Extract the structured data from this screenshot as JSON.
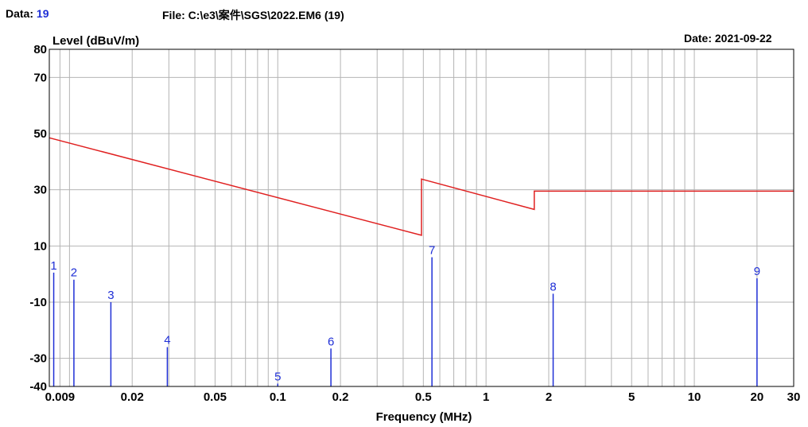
{
  "header": {
    "data_label": "Data:",
    "data_value": "19",
    "file_label": "File: C:\\e3\\案件\\SGS\\2022.EM6  (19)",
    "date_label": "Date: 2021-09-22"
  },
  "chart_data": {
    "type": "line",
    "xscale": "log",
    "xlabel": "Frequency (MHz)",
    "ylabel": "Level (dBuV/m)",
    "xlim": [
      0.008,
      30
    ],
    "ylim": [
      -40,
      80
    ],
    "grid": true,
    "y_ticks": [
      80,
      70,
      50,
      30,
      10,
      -10,
      -30,
      -40
    ],
    "y_tick_labels": [
      "80",
      "70",
      "50",
      "30",
      "10",
      "-10",
      "-30",
      "-40"
    ],
    "x_ticks": [
      0.009,
      0.02,
      0.05,
      0.1,
      0.2,
      0.5,
      1,
      2,
      5,
      10,
      20,
      30
    ],
    "x_tick_labels": [
      "0.009",
      "0.02",
      "0.05",
      "0.1",
      "0.2",
      "0.5",
      "1",
      "2",
      "5",
      "10",
      "20",
      "30"
    ],
    "series": [
      {
        "color": "#e02020",
        "points": [
          [
            0.008,
            48.5
          ],
          [
            0.49,
            13.8
          ],
          [
            0.49,
            33.8
          ],
          [
            1.705,
            23.0
          ],
          [
            1.705,
            29.5
          ],
          [
            30,
            29.5
          ]
        ]
      }
    ],
    "markers": [
      {
        "label": "1",
        "x": 0.0084,
        "y": 0.5
      },
      {
        "label": "2",
        "x": 0.0105,
        "y": -2.0
      },
      {
        "label": "3",
        "x": 0.0158,
        "y": -10.0
      },
      {
        "label": "4",
        "x": 0.0295,
        "y": -26.0
      },
      {
        "label": "5",
        "x": 0.1,
        "y": -39.0
      },
      {
        "label": "6",
        "x": 0.18,
        "y": -26.5
      },
      {
        "label": "7",
        "x": 0.55,
        "y": 6.0
      },
      {
        "label": "8",
        "x": 2.1,
        "y": -7.0
      },
      {
        "label": "9",
        "x": 20,
        "y": -1.5
      }
    ],
    "marker_color": "#1f2fd6"
  }
}
